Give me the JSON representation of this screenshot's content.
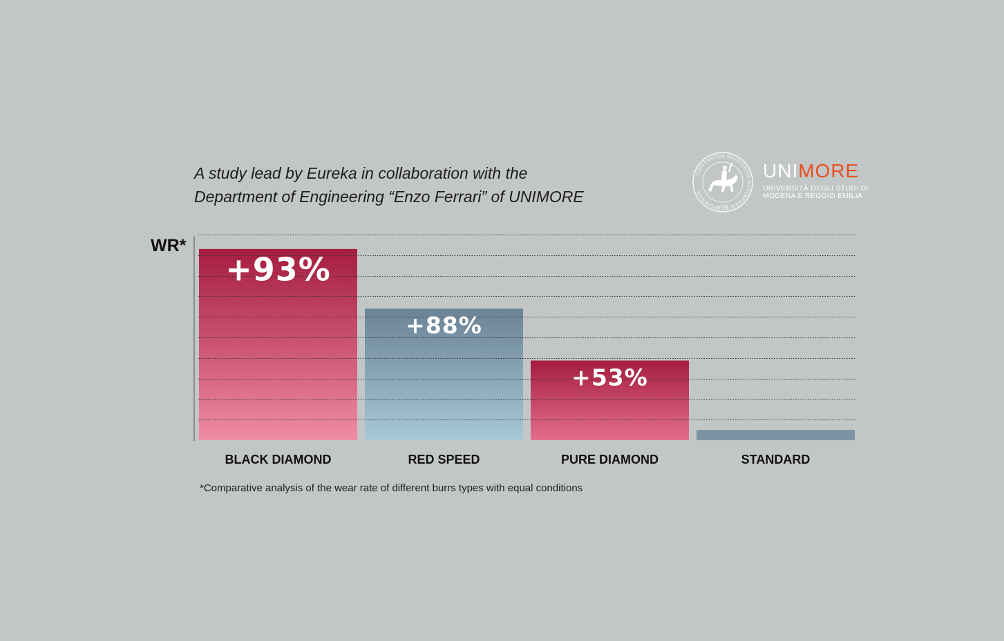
{
  "subtitle": {
    "line1": "A study lead by Eureka in collaboration with the",
    "line2": "Department of Engineering “Enzo Ferrari” of UNIMORE"
  },
  "logo": {
    "word_uni": "UNI",
    "word_more": "MORE",
    "sub_line1": "UNIVERSITÀ DEGLI STUDI DI",
    "sub_line2": "MODENA E REGGIO EMILIA",
    "seal_text": "UNIVERSITAS STUDIORUM MUTINENSIS ET REGIENSIS",
    "seal_year": "1175",
    "brand_color": "#e8501f"
  },
  "chart_data": {
    "type": "bar",
    "ylabel": "WR*",
    "categories": [
      "BLACK DIAMOND",
      "RED SPEED",
      "PURE DIAMOND",
      "STANDARD"
    ],
    "values": [
      186,
      128,
      77.5,
      10
    ],
    "data_labels": [
      "+93%",
      "+88%",
      "+53%",
      ""
    ],
    "colors": [
      [
        "#a51d3f",
        "#f08ca6"
      ],
      [
        "#6b8396",
        "#a7c8d8"
      ],
      [
        "#a51d3f",
        "#e36f8a"
      ],
      [
        "#7b93a3",
        "#7b93a3"
      ]
    ],
    "ylim": [
      0,
      200
    ],
    "grid_step": 20,
    "grid": true,
    "footnote": "*Comparative analysis of the wear rate of different burrs types with equal conditions"
  }
}
